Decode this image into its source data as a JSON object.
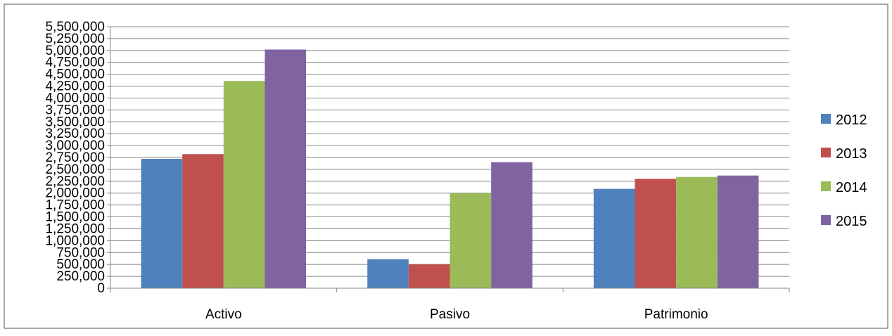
{
  "chart_data": {
    "type": "bar",
    "categories": [
      "Activo",
      "Pasivo",
      "Patrimonio"
    ],
    "series": [
      {
        "name": "2012",
        "color": "#4F81BD",
        "values": [
          2720000,
          610000,
          2090000
        ]
      },
      {
        "name": "2013",
        "color": "#C0504D",
        "values": [
          2820000,
          500000,
          2300000
        ]
      },
      {
        "name": "2014",
        "color": "#9BBB59",
        "values": [
          4360000,
          2000000,
          2340000
        ]
      },
      {
        "name": "2015",
        "color": "#8064A2",
        "values": [
          5020000,
          2650000,
          2370000
        ]
      }
    ],
    "y_ticks": [
      "0",
      "250,000",
      "500,000",
      "750,000",
      "1,000,000",
      "1,250,000",
      "1,500,000",
      "1,750,000",
      "2,000,000",
      "2,250,000",
      "2,500,000",
      "2,750,000",
      "3,000,000",
      "3,250,000",
      "3,500,000",
      "3,750,000",
      "4,000,000",
      "4,250,000",
      "4,500,000",
      "4,750,000",
      "5,000,000",
      "5,250,000",
      "5,500,000"
    ],
    "ylim": [
      0,
      5500000
    ],
    "grid": true,
    "legend_position": "right",
    "title": "",
    "xlabel": "",
    "ylabel": ""
  }
}
